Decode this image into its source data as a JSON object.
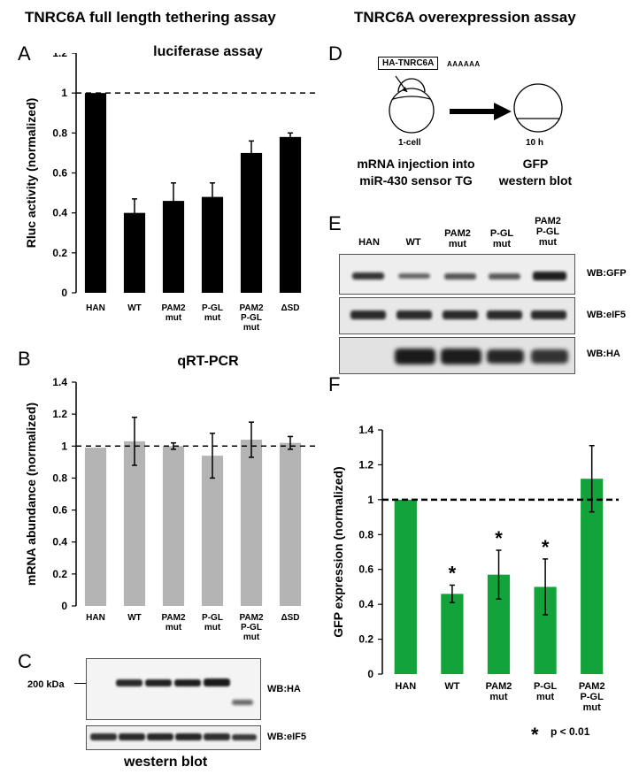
{
  "headers": {
    "left": "TNRC6A full length tethering assay",
    "right": "TNRC6A overexpression assay"
  },
  "panels": {
    "A": "A",
    "B": "B",
    "C": "C",
    "D": "D",
    "E": "E",
    "F": "F"
  },
  "colors": {
    "black": "#000000",
    "gray": "#b4b4b4",
    "green": "#12a33a"
  },
  "chart_data": [
    {
      "panel": "A",
      "type": "bar",
      "title": "luciferase assay",
      "ylabel": "Rluc activity (normalized)",
      "categories": [
        "HAN",
        "WT",
        "PAM2\nmut",
        "P-GL\nmut",
        "PAM2\nP-GL\nmut",
        "ΔSD"
      ],
      "values": [
        1.0,
        0.4,
        0.46,
        0.48,
        0.7,
        0.78
      ],
      "errors": [
        0,
        0.07,
        0.09,
        0.07,
        0.06,
        0.02
      ],
      "ylim": [
        0,
        1.2
      ],
      "yticks": [
        "0",
        "0.2",
        "0.4",
        "0.6",
        "0.8",
        "1",
        "1.2"
      ],
      "reference_line": 1,
      "color": "#000000"
    },
    {
      "panel": "B",
      "type": "bar",
      "title": "qRT-PCR",
      "ylabel": "mRNA abundance (normalized)",
      "categories": [
        "HAN",
        "WT",
        "PAM2\nmut",
        "P-GL\nmut",
        "PAM2\nP-GL\nmut",
        "ΔSD"
      ],
      "values": [
        0.99,
        1.03,
        1.0,
        0.94,
        1.04,
        1.02
      ],
      "errors": [
        0,
        0.15,
        0.02,
        0.14,
        0.11,
        0.04
      ],
      "ylim": [
        0,
        1.4
      ],
      "yticks": [
        "0",
        "0.2",
        "0.4",
        "0.6",
        "0.8",
        "1",
        "1.2",
        "1.4"
      ],
      "reference_line": 1,
      "color": "#b4b4b4"
    },
    {
      "panel": "F",
      "type": "bar",
      "ylabel": "GFP expression (normalized)",
      "categories": [
        "HAN",
        "WT",
        "PAM2\nmut",
        "P-GL\nmut",
        "PAM2\nP-GL\nmut"
      ],
      "values": [
        1.0,
        0.46,
        0.57,
        0.5,
        1.12
      ],
      "errors": [
        0,
        0.05,
        0.14,
        0.16,
        0.19
      ],
      "significant": [
        false,
        true,
        true,
        true,
        false
      ],
      "ylim": [
        0,
        1.4
      ],
      "yticks": [
        "0",
        "0.2",
        "0.4",
        "0.6",
        "0.8",
        "1",
        "1.2",
        "1.4"
      ],
      "reference_line": 1,
      "color": "#12a33a",
      "significance_marker": "*",
      "significance_note": "p < 0.01"
    }
  ],
  "blotC": {
    "marker": "200 kDa",
    "top_label": "WB:HA",
    "bottom_label": "WB:eIF5",
    "caption": "western blot"
  },
  "diagramD": {
    "construct": "HA-TNRC6A",
    "polyA": "AAAAAA",
    "stage1": "1-cell",
    "stage2": "10 h",
    "caption1": "mRNA injection into\nmiR-430 sensor TG",
    "caption2": "GFP\nwestern blot"
  },
  "blotE": {
    "lanes": [
      "HAN",
      "WT",
      "PAM2\nmut",
      "P-GL\nmut",
      "PAM2\nP-GL\nmut"
    ],
    "labels": [
      "WB:GFP",
      "WB:eIF5",
      "WB:HA"
    ]
  }
}
